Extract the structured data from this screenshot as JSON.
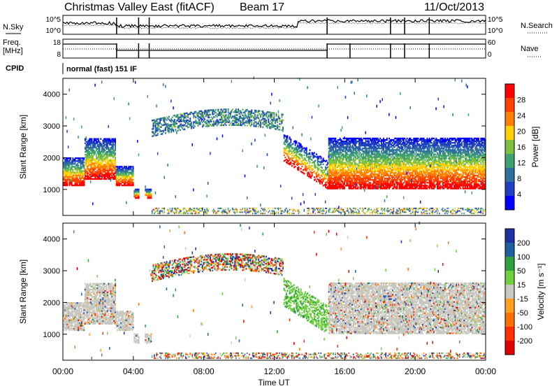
{
  "header": {
    "radar": "Christmas Valley East (fitACF)",
    "beam": "Beam 17",
    "date": "11/Oct/2013"
  },
  "labels": {
    "nsky": "N.Sky",
    "nsearch": "N.Search",
    "freq": "Freq.",
    "mhz": "[MHz]",
    "nave": "Nave",
    "cpid": "CPID",
    "cpid_value": "normal (fast) 151 IF"
  },
  "nsky_ticks_left": [
    "10^5",
    "10^0"
  ],
  "nsky_ticks_right": [
    "10^5",
    "10^0"
  ],
  "freq_ticks_left": [
    "18",
    "8"
  ],
  "freq_ticks_right": [
    "60",
    "0"
  ],
  "chart_data": [
    {
      "type": "heatmap",
      "title": "",
      "xlabel": "",
      "ylabel": "Slant Range [km]",
      "xlim": [
        0,
        24
      ],
      "ylim": [
        180,
        4500
      ],
      "x_ticks": [
        "00:00",
        "04:00",
        "08:00",
        "12:00",
        "16:00",
        "20:00",
        "00:00"
      ],
      "y_ticks": [
        1000,
        2000,
        3000,
        4000
      ],
      "colorbar": {
        "label": "Power [dB]",
        "ticks": [
          4,
          8,
          12,
          16,
          20,
          24,
          28
        ],
        "colors": [
          "#0000ff",
          "#2040c0",
          "#3070a0",
          "#40a070",
          "#80c040",
          "#ffd000",
          "#ff8000",
          "#ff4000",
          "#ff0000"
        ]
      }
    },
    {
      "type": "heatmap",
      "title": "",
      "xlabel": "Time UT",
      "ylabel": "Slant Range [km]",
      "xlim": [
        0,
        24
      ],
      "ylim": [
        180,
        4500
      ],
      "x_ticks": [
        "00:00",
        "04:00",
        "08:00",
        "12:00",
        "16:00",
        "20:00",
        "00:00"
      ],
      "y_ticks": [
        1000,
        2000,
        3000,
        4000
      ],
      "colorbar": {
        "label": "Velocity [m s⁻¹]",
        "ticks": [
          200,
          100,
          50,
          15,
          -15,
          -50,
          -100,
          -200
        ],
        "colors": [
          "#2030a0",
          "#2060a0",
          "#30a040",
          "#70d040",
          "#c8c8c0",
          "#ffa020",
          "#ff7000",
          "#ff3000",
          "#e00000"
        ]
      }
    }
  ]
}
